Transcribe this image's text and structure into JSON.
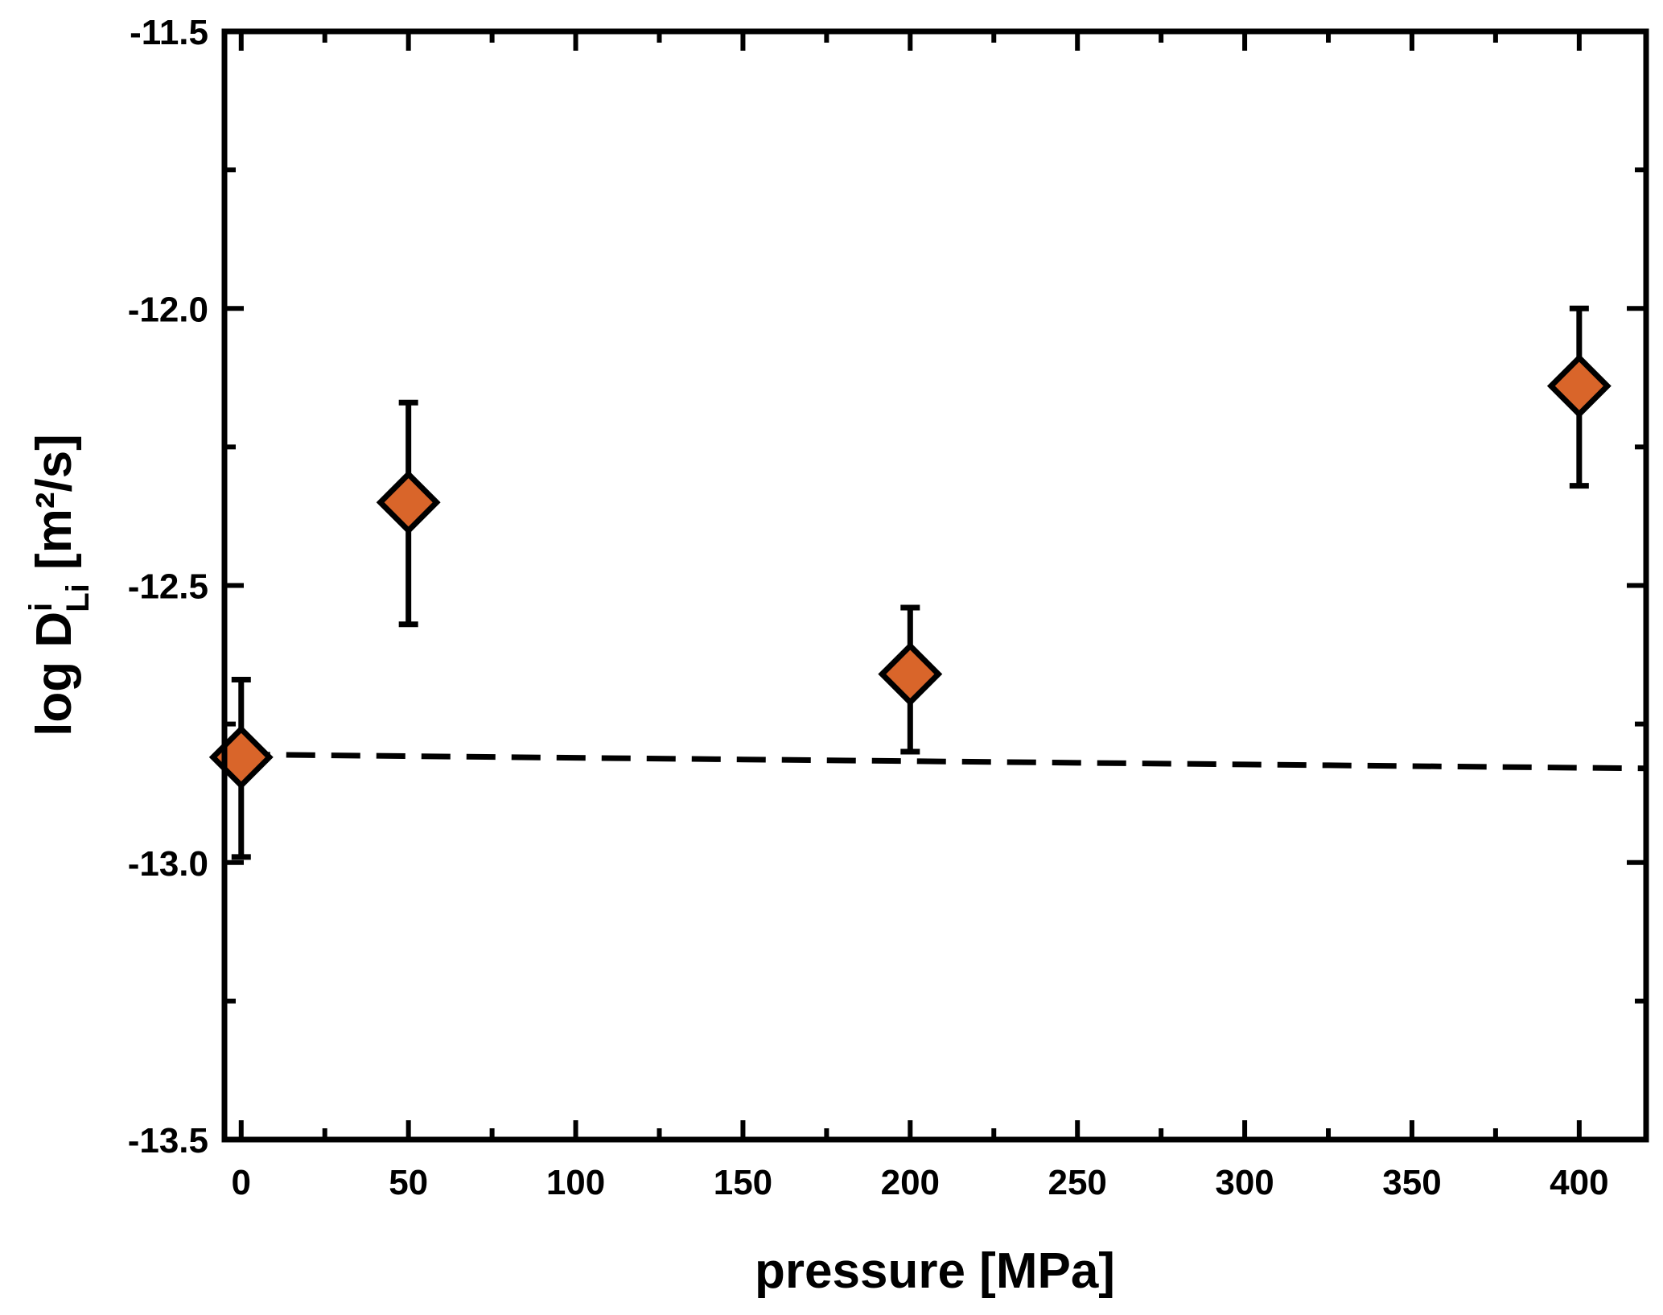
{
  "chart_data": {
    "type": "scatter",
    "title": "",
    "xlabel": "pressure [MPa]",
    "ylabel": {
      "prefix": "log D",
      "superscript": "i",
      "subscript": "Li",
      "unit": " [m²/s]"
    },
    "xlim": [
      -5,
      420
    ],
    "ylim": [
      -13.5,
      -11.5
    ],
    "x_ticks": [
      "0",
      "50",
      "100",
      "150",
      "200",
      "250",
      "300",
      "350",
      "400"
    ],
    "y_ticks": [
      "-13.5",
      "-13.0",
      "-12.5",
      "-12.0",
      "-11.5"
    ],
    "grid": false,
    "marker_color": "#d9652a",
    "series": [
      {
        "marker": "diamond",
        "points": [
          {
            "x": 0,
            "y": -12.81,
            "err_low": -12.99,
            "err_high": -12.67
          },
          {
            "x": 50,
            "y": -12.35,
            "err_low": -12.57,
            "err_high": -12.17
          },
          {
            "x": 200,
            "y": -12.66,
            "err_low": -12.8,
            "err_high": -12.54
          },
          {
            "x": 400,
            "y": -12.14,
            "err_low": -12.32,
            "err_high": -12.0
          }
        ]
      },
      {
        "line_style": "dashed",
        "x": [
          0,
          50,
          100,
          150,
          200,
          250,
          300,
          350,
          400,
          420
        ],
        "y": [
          -12.805,
          -12.808,
          -12.811,
          -12.814,
          -12.817,
          -12.82,
          -12.823,
          -12.826,
          -12.829,
          -12.83
        ]
      }
    ]
  }
}
